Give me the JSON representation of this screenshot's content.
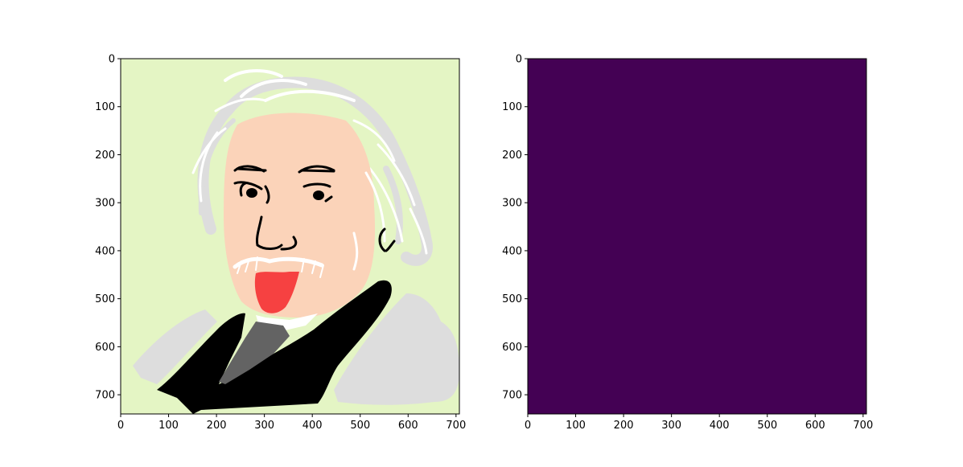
{
  "chart_data": [
    {
      "type": "image",
      "image_kind": "cartoon drawing of Einstein sticking out his tongue",
      "xlim": [
        0,
        707
      ],
      "ylim": [
        740,
        0
      ],
      "x_ticks": [
        0,
        100,
        200,
        300,
        400,
        500,
        600,
        700
      ],
      "y_ticks": [
        0,
        100,
        200,
        300,
        400,
        500,
        600,
        700
      ],
      "x_tick_labels": [
        "0",
        "100",
        "200",
        "300",
        "400",
        "500",
        "600",
        "700"
      ],
      "y_tick_labels": [
        "0",
        "100",
        "200",
        "300",
        "400",
        "500",
        "600",
        "700"
      ],
      "colors": {
        "background": "#e4f5c4",
        "skin": "#fbd3b9",
        "hair": "#dddddd",
        "hair_highlight": "#ffffff",
        "tongue": "#f64141",
        "suit": "#000000",
        "tie": "#636363",
        "sleeve": "#dddddd",
        "ink": "#000000"
      }
    },
    {
      "type": "heatmap",
      "colormap": "viridis",
      "uniform_color": "#440154",
      "xlim": [
        0,
        707
      ],
      "ylim": [
        740,
        0
      ],
      "x_ticks": [
        0,
        100,
        200,
        300,
        400,
        500,
        600,
        700
      ],
      "y_ticks": [
        0,
        100,
        200,
        300,
        400,
        500,
        600,
        700
      ],
      "x_tick_labels": [
        "0",
        "100",
        "200",
        "300",
        "400",
        "500",
        "600",
        "700"
      ],
      "y_tick_labels": [
        "0",
        "100",
        "200",
        "300",
        "400",
        "500",
        "600",
        "700"
      ]
    }
  ]
}
